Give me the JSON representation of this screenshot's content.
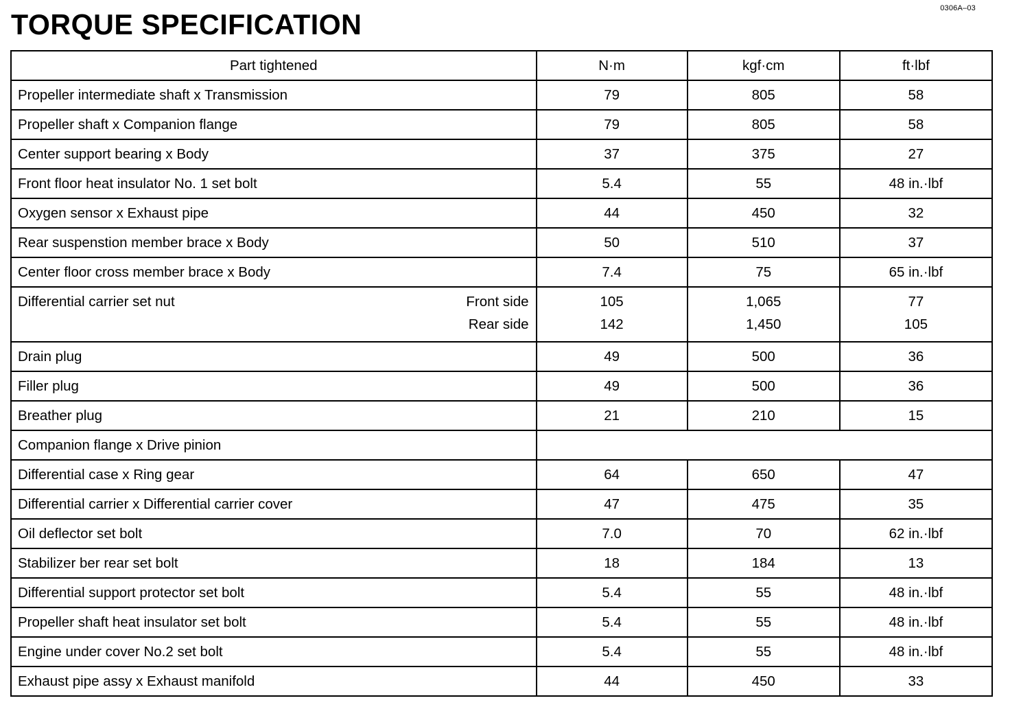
{
  "doc_code": "0306A–03",
  "title": "TORQUE SPECIFICATION",
  "table": {
    "headers": [
      "Part tightened",
      "N·m",
      "kgf·cm",
      "ft·lbf"
    ],
    "rows": [
      {
        "part": "Propeller intermediate shaft x Transmission",
        "nm": "79",
        "kgf": "805",
        "ft": "58"
      },
      {
        "part": "Propeller shaft x Companion flange",
        "nm": "79",
        "kgf": "805",
        "ft": "58"
      },
      {
        "part": "Center support bearing x Body",
        "nm": "37",
        "kgf": "375",
        "ft": "27"
      },
      {
        "part": "Front floor heat insulator No. 1 set bolt",
        "nm": "5.4",
        "kgf": "55",
        "ft": "48 in.·lbf"
      },
      {
        "part": "Oxygen sensor x Exhaust pipe",
        "nm": "44",
        "kgf": "450",
        "ft": "32"
      },
      {
        "part": "Rear suspenstion member brace x Body",
        "nm": "50",
        "kgf": "510",
        "ft": "37"
      },
      {
        "part": "Center floor cross member brace x Body",
        "nm": "7.4",
        "kgf": "75",
        "ft": "65 in.·lbf"
      },
      {
        "part": "Differential carrier set nut",
        "subs": [
          {
            "label": "Front side",
            "nm": "105",
            "kgf": "1,065",
            "ft": "77"
          },
          {
            "label": "Rear side",
            "nm": "142",
            "kgf": "1,450",
            "ft": "105"
          }
        ]
      },
      {
        "part": "Drain plug",
        "nm": "49",
        "kgf": "500",
        "ft": "36"
      },
      {
        "part": "Filler plug",
        "nm": "49",
        "kgf": "500",
        "ft": "36"
      },
      {
        "part": "Breather plug",
        "nm": "21",
        "kgf": "210",
        "ft": "15"
      },
      {
        "part": "Companion flange x Drive pinion",
        "merged": true
      },
      {
        "part": "Differential case x Ring gear",
        "nm": "64",
        "kgf": "650",
        "ft": "47"
      },
      {
        "part": "Differential carrier x Differential carrier cover",
        "nm": "47",
        "kgf": "475",
        "ft": "35"
      },
      {
        "part": "Oil deflector set bolt",
        "nm": "7.0",
        "kgf": "70",
        "ft": "62 in.·lbf"
      },
      {
        "part": "Stabilizer ber rear set bolt",
        "nm": "18",
        "kgf": "184",
        "ft": "13"
      },
      {
        "part": "Differential support protector set bolt",
        "nm": "5.4",
        "kgf": "55",
        "ft": "48 in.·lbf"
      },
      {
        "part": "Propeller shaft heat insulator set bolt",
        "nm": "5.4",
        "kgf": "55",
        "ft": "48 in.·lbf"
      },
      {
        "part": "Engine under cover No.2 set bolt",
        "nm": "5.4",
        "kgf": "55",
        "ft": "48 in.·lbf"
      },
      {
        "part": "Exhaust pipe assy x Exhaust manifold",
        "nm": "44",
        "kgf": "450",
        "ft": "33"
      }
    ]
  }
}
